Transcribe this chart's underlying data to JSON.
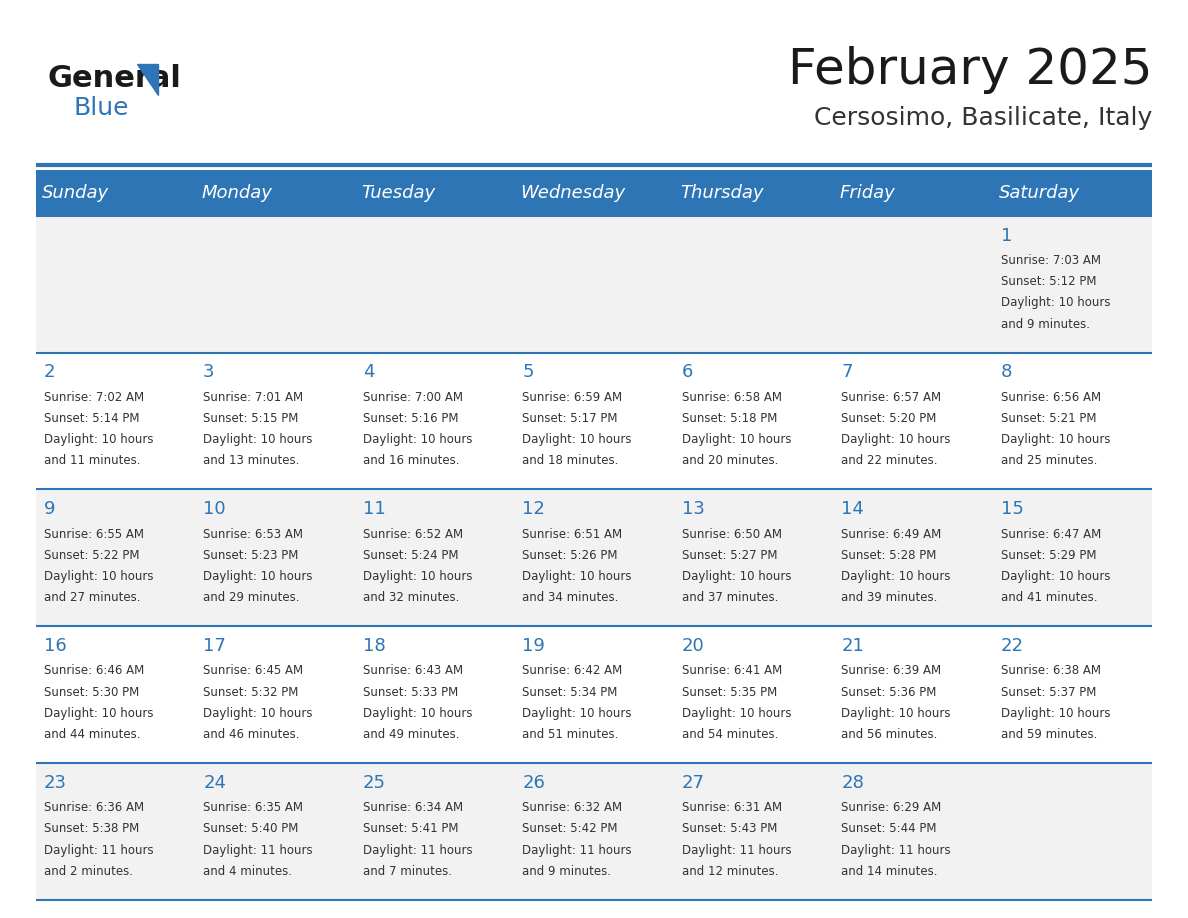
{
  "title": "February 2025",
  "subtitle": "Cersosimo, Basilicate, Italy",
  "days_of_week": [
    "Sunday",
    "Monday",
    "Tuesday",
    "Wednesday",
    "Thursday",
    "Friday",
    "Saturday"
  ],
  "header_bg": "#2E75B6",
  "header_text": "#FFFFFF",
  "cell_bg_light": "#F2F2F2",
  "cell_bg_white": "#FFFFFF",
  "divider_color": "#2E75B6",
  "text_color": "#333333",
  "day_num_color": "#2E75B6",
  "calendar_data": [
    [
      null,
      null,
      null,
      null,
      null,
      null,
      {
        "day": 1,
        "sunrise": "7:03 AM",
        "sunset": "5:12 PM",
        "daylight": "10 hours and 9 minutes."
      }
    ],
    [
      {
        "day": 2,
        "sunrise": "7:02 AM",
        "sunset": "5:14 PM",
        "daylight": "10 hours and 11 minutes."
      },
      {
        "day": 3,
        "sunrise": "7:01 AM",
        "sunset": "5:15 PM",
        "daylight": "10 hours and 13 minutes."
      },
      {
        "day": 4,
        "sunrise": "7:00 AM",
        "sunset": "5:16 PM",
        "daylight": "10 hours and 16 minutes."
      },
      {
        "day": 5,
        "sunrise": "6:59 AM",
        "sunset": "5:17 PM",
        "daylight": "10 hours and 18 minutes."
      },
      {
        "day": 6,
        "sunrise": "6:58 AM",
        "sunset": "5:18 PM",
        "daylight": "10 hours and 20 minutes."
      },
      {
        "day": 7,
        "sunrise": "6:57 AM",
        "sunset": "5:20 PM",
        "daylight": "10 hours and 22 minutes."
      },
      {
        "day": 8,
        "sunrise": "6:56 AM",
        "sunset": "5:21 PM",
        "daylight": "10 hours and 25 minutes."
      }
    ],
    [
      {
        "day": 9,
        "sunrise": "6:55 AM",
        "sunset": "5:22 PM",
        "daylight": "10 hours and 27 minutes."
      },
      {
        "day": 10,
        "sunrise": "6:53 AM",
        "sunset": "5:23 PM",
        "daylight": "10 hours and 29 minutes."
      },
      {
        "day": 11,
        "sunrise": "6:52 AM",
        "sunset": "5:24 PM",
        "daylight": "10 hours and 32 minutes."
      },
      {
        "day": 12,
        "sunrise": "6:51 AM",
        "sunset": "5:26 PM",
        "daylight": "10 hours and 34 minutes."
      },
      {
        "day": 13,
        "sunrise": "6:50 AM",
        "sunset": "5:27 PM",
        "daylight": "10 hours and 37 minutes."
      },
      {
        "day": 14,
        "sunrise": "6:49 AM",
        "sunset": "5:28 PM",
        "daylight": "10 hours and 39 minutes."
      },
      {
        "day": 15,
        "sunrise": "6:47 AM",
        "sunset": "5:29 PM",
        "daylight": "10 hours and 41 minutes."
      }
    ],
    [
      {
        "day": 16,
        "sunrise": "6:46 AM",
        "sunset": "5:30 PM",
        "daylight": "10 hours and 44 minutes."
      },
      {
        "day": 17,
        "sunrise": "6:45 AM",
        "sunset": "5:32 PM",
        "daylight": "10 hours and 46 minutes."
      },
      {
        "day": 18,
        "sunrise": "6:43 AM",
        "sunset": "5:33 PM",
        "daylight": "10 hours and 49 minutes."
      },
      {
        "day": 19,
        "sunrise": "6:42 AM",
        "sunset": "5:34 PM",
        "daylight": "10 hours and 51 minutes."
      },
      {
        "day": 20,
        "sunrise": "6:41 AM",
        "sunset": "5:35 PM",
        "daylight": "10 hours and 54 minutes."
      },
      {
        "day": 21,
        "sunrise": "6:39 AM",
        "sunset": "5:36 PM",
        "daylight": "10 hours and 56 minutes."
      },
      {
        "day": 22,
        "sunrise": "6:38 AM",
        "sunset": "5:37 PM",
        "daylight": "10 hours and 59 minutes."
      }
    ],
    [
      {
        "day": 23,
        "sunrise": "6:36 AM",
        "sunset": "5:38 PM",
        "daylight": "11 hours and 2 minutes."
      },
      {
        "day": 24,
        "sunrise": "6:35 AM",
        "sunset": "5:40 PM",
        "daylight": "11 hours and 4 minutes."
      },
      {
        "day": 25,
        "sunrise": "6:34 AM",
        "sunset": "5:41 PM",
        "daylight": "11 hours and 7 minutes."
      },
      {
        "day": 26,
        "sunrise": "6:32 AM",
        "sunset": "5:42 PM",
        "daylight": "11 hours and 9 minutes."
      },
      {
        "day": 27,
        "sunrise": "6:31 AM",
        "sunset": "5:43 PM",
        "daylight": "11 hours and 12 minutes."
      },
      {
        "day": 28,
        "sunrise": "6:29 AM",
        "sunset": "5:44 PM",
        "daylight": "11 hours and 14 minutes."
      },
      null
    ]
  ],
  "logo_text_general": "General",
  "logo_text_blue": "Blue",
  "title_fontsize": 36,
  "subtitle_fontsize": 18,
  "header_fontsize": 13,
  "day_num_fontsize": 13,
  "cell_text_fontsize": 8.5
}
